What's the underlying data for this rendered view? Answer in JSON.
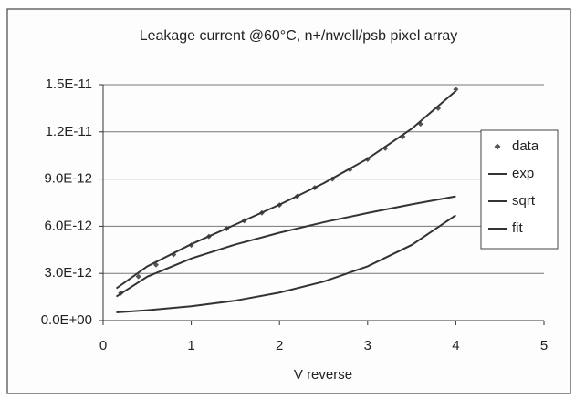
{
  "chart_data": {
    "type": "line",
    "title": "Leakage current @60°C, n+/nwell/psb pixel array",
    "xlabel": "V reverse",
    "xlim": [
      0,
      5
    ],
    "xticks": [
      0,
      1,
      2,
      3,
      4,
      5
    ],
    "ylim": [
      0,
      1.5e-11
    ],
    "yticks": [
      {
        "value": 0,
        "label": "0.0E+00"
      },
      {
        "value": 3e-12,
        "label": "3.0E-12"
      },
      {
        "value": 6e-12,
        "label": "6.0E-12"
      },
      {
        "value": 9e-12,
        "label": "9.0E-12"
      },
      {
        "value": 1.2e-11,
        "label": "1.2E-11"
      },
      {
        "value": 1.5e-11,
        "label": "1.5E-11"
      }
    ],
    "grid": true,
    "legend": "right",
    "series": [
      {
        "name": "data",
        "color": "#555555",
        "marker": "diamond",
        "x": [
          0.2,
          0.4,
          0.6,
          0.8,
          1.0,
          1.2,
          1.4,
          1.6,
          1.8,
          2.0,
          2.2,
          2.4,
          2.6,
          2.8,
          3.0,
          3.2,
          3.4,
          3.6,
          3.8,
          4.0
        ],
        "values": [
          1.75e-12,
          2.8e-12,
          3.55e-12,
          4.2e-12,
          4.8e-12,
          5.35e-12,
          5.85e-12,
          6.35e-12,
          6.85e-12,
          7.35e-12,
          7.9e-12,
          8.45e-12,
          9e-12,
          9.6e-12,
          1.025e-11,
          1.095e-11,
          1.17e-11,
          1.25e-11,
          1.35e-11,
          1.47e-11
        ]
      },
      {
        "name": "exp",
        "color": "#333333",
        "x": [
          0.15,
          0.5,
          1.0,
          1.5,
          2.0,
          2.5,
          3.0,
          3.5,
          4.0
        ],
        "values": [
          5.2e-13,
          6.6e-13,
          9.1e-13,
          1.27e-12,
          1.78e-12,
          2.48e-12,
          3.45e-12,
          4.81e-12,
          6.7e-12
        ]
      },
      {
        "name": "sqrt",
        "color": "#333333",
        "x": [
          0.15,
          0.5,
          1.0,
          1.5,
          2.0,
          2.5,
          3.0,
          3.5,
          4.0
        ],
        "values": [
          1.53e-12,
          2.79e-12,
          3.95e-12,
          4.84e-12,
          5.59e-12,
          6.25e-12,
          6.84e-12,
          7.39e-12,
          7.9e-12
        ]
      },
      {
        "name": "fit",
        "color": "#333333",
        "x": [
          0.15,
          0.5,
          1.0,
          1.5,
          2.0,
          2.5,
          3.0,
          3.5,
          4.0
        ],
        "values": [
          2.05e-12,
          3.45e-12,
          4.86e-12,
          6.11e-12,
          7.37e-12,
          8.73e-12,
          1.029e-11,
          1.22e-11,
          1.46e-11
        ]
      }
    ]
  }
}
